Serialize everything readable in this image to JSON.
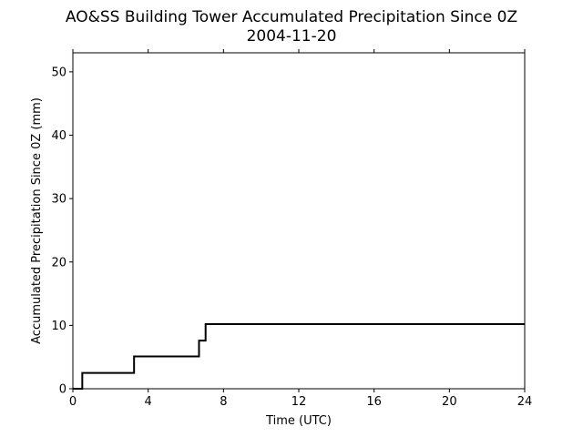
{
  "chart_data": {
    "type": "line",
    "title": "AO&SS Building Tower Accumulated Precipitation Since 0Z",
    "subtitle": "2004-11-20",
    "xlabel": "Time (UTC)",
    "ylabel": "Accumulated Precipitation Since 0Z (mm)",
    "xlim": [
      0,
      24
    ],
    "ylim": [
      0,
      53
    ],
    "xticks": [
      "0",
      "4",
      "8",
      "12",
      "16",
      "20",
      "24"
    ],
    "yticks": [
      "0",
      "10",
      "20",
      "30",
      "40",
      "50"
    ],
    "grid": false,
    "line_color": "#000000",
    "series": [
      {
        "step": "post",
        "x": [
          0,
          0.5,
          3.25,
          6.7,
          7.05,
          24
        ],
        "y": [
          0,
          2.5,
          5.1,
          7.6,
          10.2,
          10.2
        ]
      }
    ]
  }
}
